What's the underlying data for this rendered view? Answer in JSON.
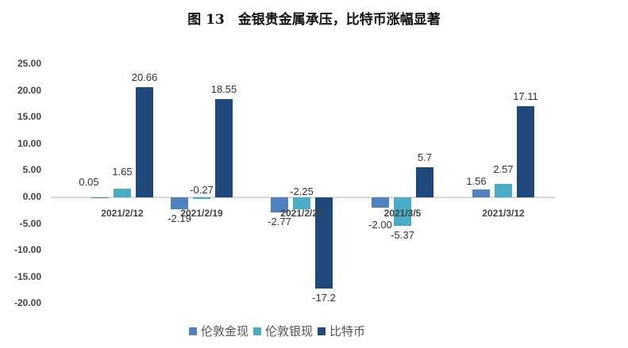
{
  "chart_data": {
    "type": "bar",
    "title": "图 13　金银贵金属承压，比特币涨幅显著",
    "xlabel": "",
    "ylabel": "",
    "ylim": [
      -20,
      25
    ],
    "yticks": [
      "25.00",
      "20.00",
      "15.00",
      "10.00",
      "5.00",
      "0.00",
      "-5.00",
      "-10.00",
      "-15.00",
      "-20.00"
    ],
    "categories": [
      "2021/2/12",
      "2021/2/19",
      "2021/2/26",
      "2021/3/5",
      "2021/3/12"
    ],
    "series": [
      {
        "name": "伦敦金现",
        "color": "#4f81bd",
        "values": [
          0.05,
          -2.19,
          -2.77,
          -2.0,
          1.56
        ],
        "labels": [
          "0.05",
          "-2.19",
          "-2.77",
          "-2.00",
          "1.56"
        ]
      },
      {
        "name": "伦敦银现",
        "color": "#4bacc6",
        "values": [
          1.65,
          -0.27,
          -2.25,
          -5.37,
          2.57
        ],
        "labels": [
          "1.65",
          "-0.27",
          "-2.25",
          "-5.37",
          "2.57"
        ]
      },
      {
        "name": "比特币",
        "color": "#1f497d",
        "values": [
          20.66,
          18.55,
          -17.2,
          5.7,
          17.11
        ],
        "labels": [
          "20.66",
          "18.55",
          "-17.2",
          "5.7",
          "17.11"
        ]
      }
    ],
    "legend_position": "bottom",
    "grid": false
  }
}
